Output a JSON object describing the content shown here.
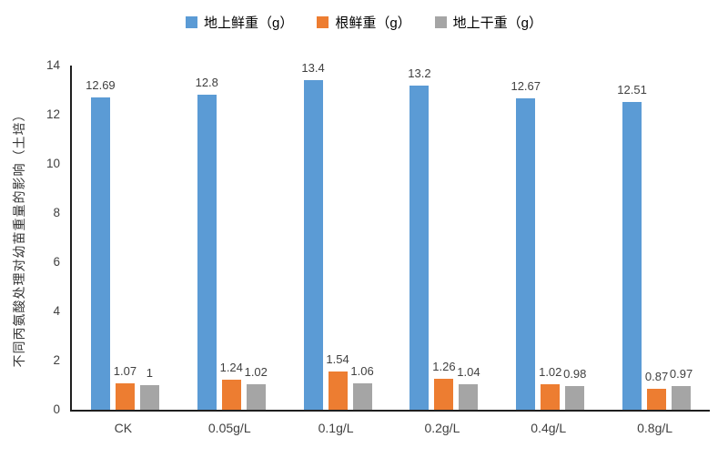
{
  "chart_data": {
    "type": "bar",
    "title": "",
    "categories": [
      "CK",
      "0.05g/L",
      "0.1g/L",
      "0.2g/L",
      "0.4g/L",
      "0.8g/L"
    ],
    "series": [
      {
        "name": "地上鲜重（g）",
        "color": "#5B9BD5",
        "values": [
          12.69,
          12.8,
          13.4,
          13.2,
          12.67,
          12.51
        ]
      },
      {
        "name": "根鲜重（g）",
        "color": "#ED7D31",
        "values": [
          1.07,
          1.24,
          1.54,
          1.26,
          1.02,
          0.87
        ]
      },
      {
        "name": "地上干重（g）",
        "color": "#A5A5A5",
        "values": [
          1,
          1.02,
          1.06,
          1.04,
          0.98,
          0.97
        ]
      }
    ],
    "xlabel": "",
    "ylabel": "不同丙氨酸处理对幼苗重量的影响（土培）",
    "ylim": [
      0,
      14
    ],
    "y_ticks": [
      0,
      2,
      4,
      6,
      8,
      10,
      12,
      14
    ],
    "grid": false,
    "legend_position": "top"
  },
  "colors": {
    "axis": "#1f1f1f",
    "tick_text": "#404040",
    "data_label_text": "#404040"
  }
}
